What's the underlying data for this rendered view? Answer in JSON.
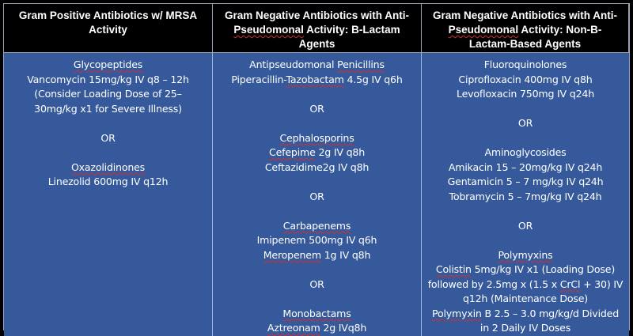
{
  "headers": [
    {
      "label": "Gram Positive Antibiotics w/ MRSA Activity"
    },
    {
      "label": "Gram Negative Antibiotics with Anti-Pseudomonal Activity: B-Lactam Agents"
    },
    {
      "label": "Gram Negative Antibiotics with Anti-Pseudomonal Activity: Non-B-Lactam-Based Agents"
    }
  ],
  "columns": {
    "gram_positive": {
      "glycopeptides_title": "Glycopeptides",
      "vancomycin_line1": "Vancomycin 15mg/kg IV q8 – 12h",
      "vancomycin_line2": "(Consider Loading Dose of 25–",
      "vancomycin_line3": "30mg/kg x1 for Severe Illness)",
      "or1": "OR",
      "oxazolidinones_title": "Oxazolidinones",
      "linezolid": "Linezolid 600mg IV q12h"
    },
    "beta_lactam": {
      "penicillins_title_a": "Antipseudomonal ",
      "penicillins_title_b": "Penicillins",
      "pip_tazo_a": "Piperacillin-",
      "pip_tazo_b": "Tazobactam",
      "pip_tazo_c": " 4.5g IV q6h",
      "or1": "OR",
      "cephalosporins_title": "Cephalosporins",
      "cefepime_a": "Cefepime",
      "cefepime_b": " 2g IV q8h",
      "ceftazidime": "Ceftazidime2g IV q8h",
      "or2": "OR",
      "carbapenems_title": "Carbapenems",
      "imipenem": "Imipenem 500mg IV q6h",
      "meropenem_a": "Meropenem",
      "meropenem_b": " 1g IV q8h",
      "or3": "OR",
      "monobactams_title": "Monobactams",
      "aztreonam_a": "Aztreonam",
      "aztreonam_b": " 2g IVq8h"
    },
    "non_beta_lactam": {
      "fluoroquinolones_title": "Fluoroquinolones",
      "ciprofloxacin": "Ciprofloxacin 400mg IV q8h",
      "levofloxacin": "Levofloxacin 750mg IV q24h",
      "or1": "OR",
      "aminoglycosides_title": "Aminoglycosides",
      "amikacin": "Amikacin 15 – 20mg/kg IV q24h",
      "gentamicin": "Gentamicin 5 – 7 mg/kg IV q24h",
      "tobramycin": "Tobramycin 5 – 7mg/kg IV q24h",
      "or2": "OR",
      "polymyxins_title": "Polymyxins",
      "colistin_a": "Colistin",
      "colistin_b": " 5mg/kg IV x1 (Loading Dose)",
      "colistin_line2_a": "followed by 2.5mg x (1.5 x ",
      "colistin_line2_b": "CrCl",
      "colistin_line2_c": " + 30) IV",
      "colistin_line3": "q12h (Maintenance Dose)",
      "polymyxin_b_a": "Polymyxin",
      "polymyxin_b_b": " B 2.5 – 3.0 mg/kg/d Divided",
      "polymyxin_b_line2": "in 2 Daily IV Doses"
    }
  },
  "colors": {
    "header_bg": "#000000",
    "body_bg": "#35599a",
    "text": "#ffffff",
    "spellcheck_underline": "#d03030"
  }
}
